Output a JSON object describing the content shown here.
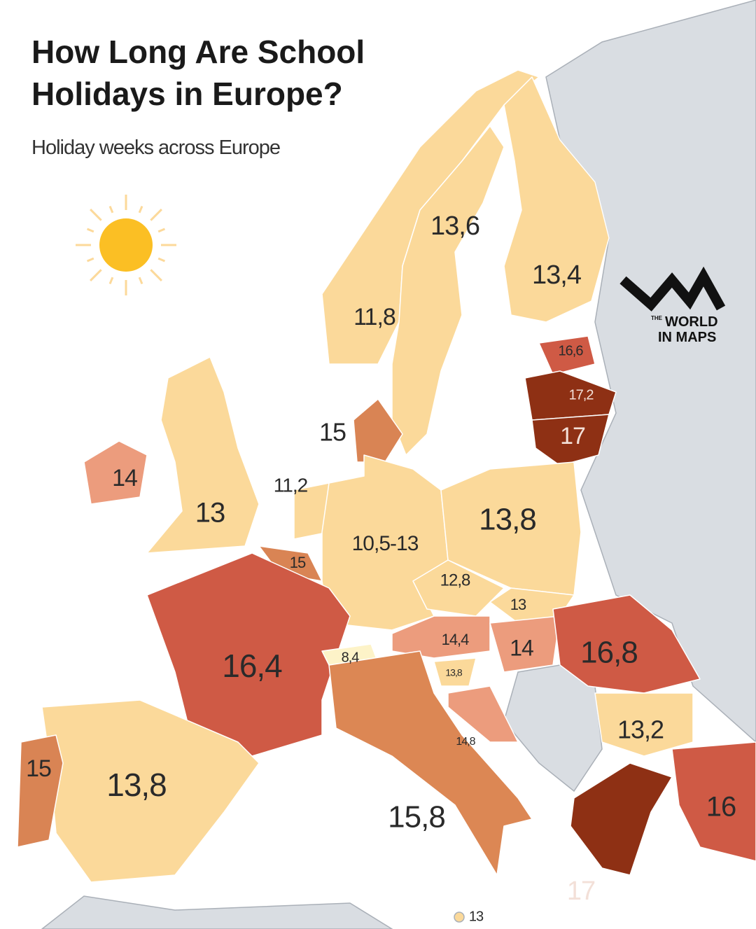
{
  "header": {
    "title_line1": "How Long Are School",
    "title_line2": "Holidays in Europe?",
    "subtitle": "Holiday weeks across Europe"
  },
  "logo": {
    "small": "THE",
    "line1": "WORLD",
    "line2": "IN MAPS"
  },
  "regions": [
    {
      "label": "11,8",
      "color": "#fbd99a"
    },
    {
      "label": "13,6",
      "color": "#fbd99a"
    },
    {
      "label": "13,4",
      "color": "#fbd99a"
    },
    {
      "label": "16,6",
      "color": "#cf5a45"
    },
    {
      "label": "17,2",
      "color": "#8e3014"
    },
    {
      "label": "17",
      "color": "#8e3014"
    },
    {
      "label": "15",
      "color": "#d98454"
    },
    {
      "label": "14",
      "color": "#ec9c7d"
    },
    {
      "label": "13",
      "color": "#fbd99a"
    },
    {
      "label": "11,2",
      "color": "#fbd99a"
    },
    {
      "label": "15",
      "color": "#d98454"
    },
    {
      "label": "10,5-13",
      "color": "#fbd99a"
    },
    {
      "label": "13,8",
      "color": "#fbd99a"
    },
    {
      "label": "12,8",
      "color": "#fbd99a"
    },
    {
      "label": "13",
      "color": "#fbd99a"
    },
    {
      "label": "14,4",
      "color": "#ec9c7d"
    },
    {
      "label": "14",
      "color": "#ec9c7d"
    },
    {
      "label": "16,8",
      "color": "#cf5a45"
    },
    {
      "label": "16,4",
      "color": "#cf5a45"
    },
    {
      "label": "8,4",
      "color": "#fdf3c8"
    },
    {
      "label": "13,8",
      "color": "#fbd99a"
    },
    {
      "label": "14,8",
      "color": "#ec9c7d"
    },
    {
      "label": "13,2",
      "color": "#fbd99a"
    },
    {
      "label": "15,8",
      "color": "#dc8754"
    },
    {
      "label": "13,8",
      "color": "#fbd99a"
    },
    {
      "label": "15",
      "color": "#d98454"
    },
    {
      "label": "17",
      "color": "#8e3014"
    },
    {
      "label": "16",
      "color": "#cf5a45"
    },
    {
      "label": "13",
      "color": "#fbd99a"
    }
  ]
}
